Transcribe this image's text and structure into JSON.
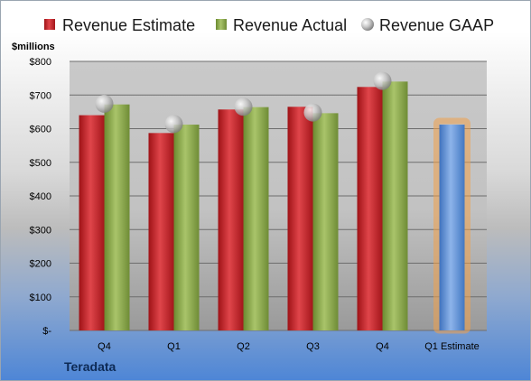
{
  "company": "Teradata",
  "unit_label": "$millions",
  "colors": {
    "estimate": "#cc1f24",
    "actual": "#8aa84a",
    "gaap": "#b8b8b8",
    "projection": "#5b8fd6",
    "projection_glow": "#f0a04b"
  },
  "chart_data": {
    "type": "bar",
    "title": "",
    "xlabel": "",
    "ylabel": "$millions",
    "ylim": [
      0,
      800
    ],
    "y_ticks": [
      0,
      100,
      200,
      300,
      400,
      500,
      600,
      700,
      800
    ],
    "y_tick_labels": [
      "$-",
      "$100",
      "$200",
      "$300",
      "$400",
      "$500",
      "$600",
      "$700",
      "$800"
    ],
    "grid": true,
    "legend_position": "top",
    "categories": [
      "Q4",
      "Q1",
      "Q2",
      "Q3",
      "Q4",
      "Q1 Estimate"
    ],
    "series": [
      {
        "name": "Revenue Estimate",
        "kind": "bar",
        "values": [
          640,
          587,
          657,
          665,
          724,
          null
        ]
      },
      {
        "name": "Revenue Actual",
        "kind": "bar",
        "values": [
          672,
          612,
          664,
          646,
          740,
          null
        ]
      },
      {
        "name": "Revenue GAAP",
        "kind": "marker",
        "values": [
          674,
          614,
          665,
          648,
          742,
          null
        ]
      },
      {
        "name": "",
        "kind": "projection",
        "values": [
          null,
          null,
          null,
          null,
          null,
          612
        ]
      }
    ]
  }
}
